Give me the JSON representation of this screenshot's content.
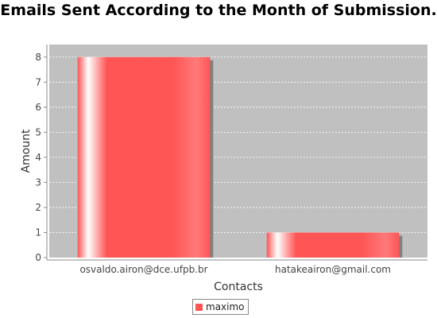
{
  "chart_data": {
    "type": "bar",
    "title": "Emails Sent According to the Month of Submission.",
    "xlabel": "Contacts",
    "ylabel": "Amount",
    "categories": [
      "osvaldo.airon@dce.ufpb.br",
      "hatakeairon@gmail.com"
    ],
    "series": [
      {
        "name": "maximo",
        "values": [
          8,
          1
        ]
      }
    ],
    "ylim": [
      0,
      8.5
    ],
    "yticks": [
      0,
      1,
      2,
      3,
      4,
      5,
      6,
      7,
      8
    ],
    "grid": true,
    "legend_position": "bottom",
    "colors": {
      "bar": "#ff5555",
      "plot_background": "#c0c0c0"
    }
  }
}
